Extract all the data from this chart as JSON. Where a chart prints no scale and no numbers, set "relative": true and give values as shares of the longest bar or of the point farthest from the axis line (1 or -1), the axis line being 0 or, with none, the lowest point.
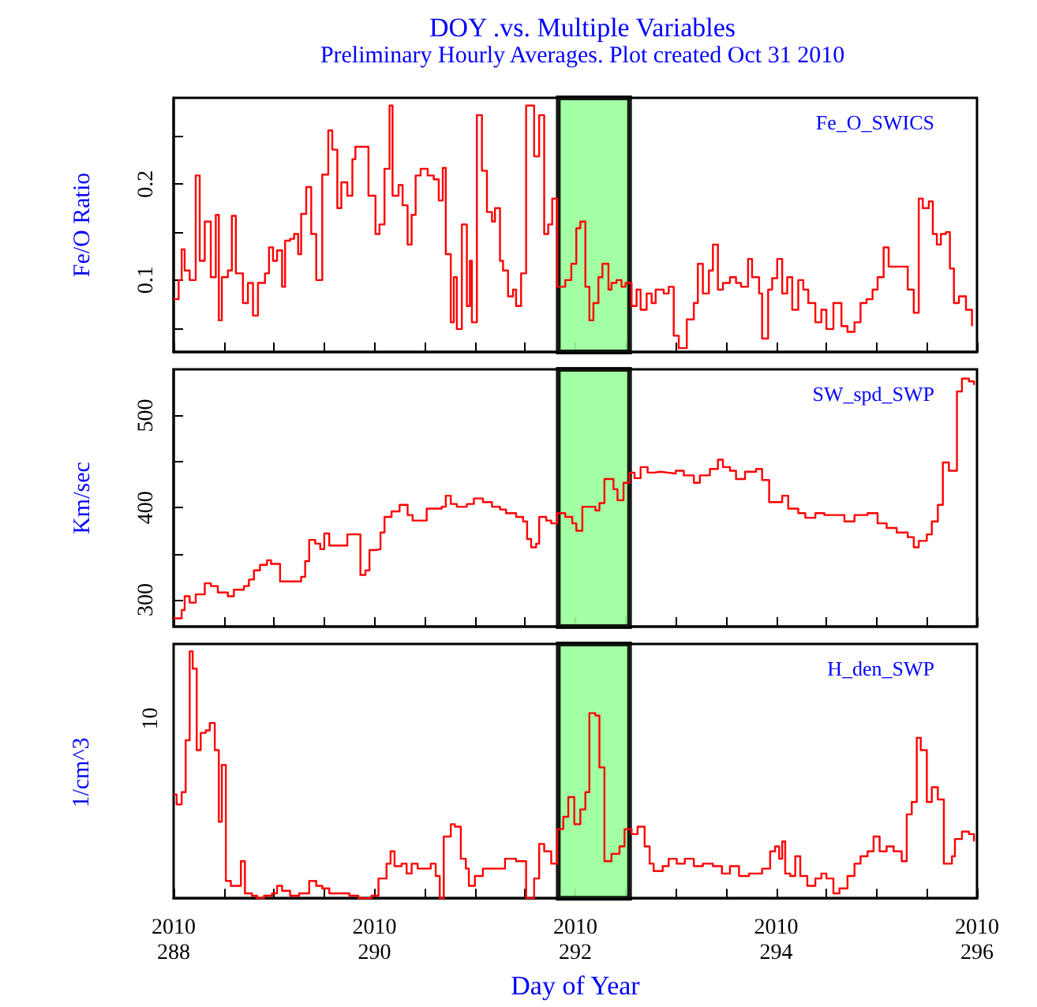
{
  "chart_data": [
    {
      "type": "step",
      "title": "DOY .vs. Multiple Variables",
      "subtitle": "Preliminary Hourly Averages. Plot created Oct 31 2010",
      "ylabel": "Fe/O Ratio",
      "legend": "top right",
      "tick_labels": "y",
      "xlim": [
        288,
        296
      ],
      "ylim": [
        0.025,
        0.29
      ],
      "xticks": [
        288,
        {
          "value": 288.5,
          "label": null
        },
        {
          "value": 289,
          "label": null
        },
        {
          "value": 289.5,
          "label": null
        },
        290,
        {
          "value": 290.5,
          "label": null
        },
        {
          "value": 291,
          "label": null
        },
        {
          "value": 291.5,
          "label": null
        },
        292,
        {
          "value": 292.5,
          "label": null
        },
        {
          "value": 293,
          "label": null
        },
        {
          "value": 293.5,
          "label": null
        },
        294,
        {
          "value": 294.5,
          "label": null
        },
        {
          "value": 295,
          "label": null
        },
        {
          "value": 295.5,
          "label": null
        },
        296
      ],
      "yticks": [
        {
          "value": 0.05,
          "label": null
        },
        0.1,
        {
          "value": 0.15,
          "label": null
        },
        0.2,
        {
          "value": 0.25,
          "label": null
        }
      ],
      "bands": [
        {
          "axis": "x",
          "from": 291.83,
          "to": 292.54,
          "color": "#99ff99"
        }
      ],
      "series": [
        {
          "name": "Fe_O_SWICS",
          "color": "#ff0000",
          "x": [
            288,
            288.05,
            288.08,
            288.11,
            288.16,
            288.22,
            288.26,
            288.31,
            288.37,
            288.42,
            288.45,
            288.48,
            288.54,
            288.58,
            288.62,
            288.69,
            288.74,
            288.79,
            288.84,
            288.91,
            288.95,
            288.99,
            289.03,
            289.08,
            289.11,
            289.16,
            289.2,
            289.24,
            289.27,
            289.32,
            289.37,
            289.42,
            289.48,
            289.54,
            289.58,
            289.63,
            289.67,
            289.73,
            289.78,
            289.81,
            289.86,
            289.94,
            290.01,
            290.05,
            290.1,
            290.15,
            290.18,
            290.24,
            290.28,
            290.33,
            290.37,
            290.41,
            290.46,
            290.53,
            290.59,
            290.64,
            290.68,
            290.71,
            290.76,
            290.79,
            290.82,
            290.87,
            290.92,
            290.95,
            290.97,
            291.02,
            291.07,
            291.12,
            291.17,
            291.2,
            291.25,
            291.28,
            291.33,
            291.38,
            291.41,
            291.46,
            291.51,
            291.59,
            291.64,
            291.69,
            291.73,
            291.77,
            291.82,
            291.9,
            291.96,
            292.01,
            292.05,
            292.1,
            292.14,
            292.18,
            292.23,
            292.27,
            292.33,
            292.36,
            292.41,
            292.46,
            292.5,
            292.56,
            292.61,
            292.65,
            292.71,
            292.76,
            292.8,
            292.88,
            292.93,
            292.98,
            293.03,
            293.11,
            293.18,
            293.22,
            293.27,
            293.33,
            293.37,
            293.42,
            293.47,
            293.54,
            293.6,
            293.65,
            293.72,
            293.76,
            293.83,
            293.86,
            293.92,
            293.96,
            294.01,
            294.06,
            294.11,
            294.16,
            294.22,
            294.27,
            294.32,
            294.39,
            294.45,
            294.5,
            294.57,
            294.65,
            294.71,
            294.78,
            294.84,
            294.9,
            294.96,
            295.01,
            295.07,
            295.12,
            295.2,
            295.31,
            295.37,
            295.42,
            295.46,
            295.52,
            295.56,
            295.6,
            295.64,
            295.69,
            295.73,
            295.77,
            295.82,
            295.89,
            295.95
          ],
          "values": [
            0.08,
            0.1,
            0.132,
            0.11,
            0.1,
            0.209,
            0.12,
            0.161,
            0.103,
            0.168,
            0.058,
            0.103,
            0.11,
            0.167,
            0.107,
            0.076,
            0.097,
            0.063,
            0.097,
            0.107,
            0.134,
            0.12,
            0.131,
            0.093,
            0.141,
            0.143,
            0.148,
            0.127,
            0.169,
            0.197,
            0.148,
            0.1,
            0.21,
            0.256,
            0.236,
            0.175,
            0.202,
            0.188,
            0.226,
            0.239,
            0.239,
            0.188,
            0.148,
            0.158,
            0.216,
            0.282,
            0.188,
            0.199,
            0.178,
            0.137,
            0.168,
            0.209,
            0.216,
            0.209,
            0.205,
            0.183,
            0.217,
            0.127,
            0.056,
            0.103,
            0.049,
            0.158,
            0.073,
            0.12,
            0.056,
            0.272,
            0.214,
            0.171,
            0.161,
            0.175,
            0.12,
            0.11,
            0.083,
            0.09,
            0.073,
            0.107,
            0.282,
            0.229,
            0.272,
            0.148,
            0.158,
            0.185,
            0.093,
            0.1,
            0.117,
            0.154,
            0.161,
            0.093,
            0.058,
            0.076,
            0.103,
            0.117,
            0.09,
            0.097,
            0.1,
            0.093,
            0.097,
            0.073,
            0.09,
            0.069,
            0.086,
            0.076,
            0.09,
            0.086,
            0.093,
            0.042,
            0.029,
            0.059,
            0.076,
            0.117,
            0.086,
            0.11,
            0.137,
            0.09,
            0.097,
            0.103,
            0.097,
            0.093,
            0.122,
            0.103,
            0.086,
            0.039,
            0.09,
            0.102,
            0.122,
            0.086,
            0.103,
            0.069,
            0.1,
            0.09,
            0.076,
            0.056,
            0.069,
            0.049,
            0.076,
            0.052,
            0.046,
            0.056,
            0.076,
            0.08,
            0.09,
            0.103,
            0.134,
            0.114,
            0.114,
            0.09,
            0.066,
            0.185,
            0.175,
            0.182,
            0.148,
            0.137,
            0.148,
            0.15,
            0.112,
            0.076,
            0.083,
            0.069,
            0.052
          ]
        }
      ]
    },
    {
      "type": "step",
      "ylabel": "Km/sec",
      "legend": "top right",
      "tick_labels": "y",
      "xlim": [
        288,
        296
      ],
      "ylim": [
        271,
        550
      ],
      "xticks": [
        288,
        {
          "value": 288.5,
          "label": null
        },
        {
          "value": 289,
          "label": null
        },
        {
          "value": 289.5,
          "label": null
        },
        290,
        {
          "value": 290.5,
          "label": null
        },
        {
          "value": 291,
          "label": null
        },
        {
          "value": 291.5,
          "label": null
        },
        292,
        {
          "value": 292.5,
          "label": null
        },
        {
          "value": 293,
          "label": null
        },
        {
          "value": 293.5,
          "label": null
        },
        294,
        {
          "value": 294.5,
          "label": null
        },
        {
          "value": 295,
          "label": null
        },
        {
          "value": 295.5,
          "label": null
        },
        296
      ],
      "yticks": [
        300,
        {
          "value": 350,
          "label": null
        },
        400,
        {
          "value": 450,
          "label": null
        },
        500
      ],
      "bands": [
        {
          "axis": "x",
          "from": 291.83,
          "to": 292.54,
          "color": "#99ff99"
        }
      ],
      "series": [
        {
          "name": "SW_spd_SWP",
          "color": "#ff0000",
          "x": [
            288,
            288.08,
            288.11,
            288.16,
            288.22,
            288.31,
            288.37,
            288.44,
            288.54,
            288.6,
            288.7,
            288.75,
            288.8,
            288.86,
            288.93,
            288.97,
            289.06,
            289.16,
            289.27,
            289.31,
            289.35,
            289.41,
            289.46,
            289.5,
            289.55,
            289.65,
            289.73,
            289.82,
            289.86,
            289.91,
            289.95,
            290.01,
            290.06,
            290.1,
            290.17,
            290.25,
            290.33,
            290.38,
            290.46,
            290.52,
            290.59,
            290.67,
            290.71,
            290.76,
            290.82,
            290.92,
            290.99,
            291.08,
            291.17,
            291.25,
            291.31,
            291.41,
            291.48,
            291.52,
            291.56,
            291.61,
            291.64,
            291.71,
            291.76,
            291.82,
            291.9,
            291.97,
            292.01,
            292.07,
            292.12,
            292.2,
            292.24,
            292.29,
            292.35,
            292.38,
            292.42,
            292.48,
            292.54,
            292.59,
            292.65,
            292.72,
            292.78,
            292.85,
            292.92,
            293,
            293.08,
            293.18,
            293.24,
            293.34,
            293.42,
            293.47,
            293.54,
            293.6,
            293.69,
            293.8,
            293.86,
            293.93,
            293.99,
            294.06,
            294.12,
            294.22,
            294.29,
            294.39,
            294.48,
            294.58,
            294.68,
            294.78,
            294.91,
            295.01,
            295.1,
            295.2,
            295.31,
            295.37,
            295.42,
            295.5,
            295.55,
            295.61,
            295.66,
            295.72,
            295.8,
            295.85,
            295.92,
            295.97
          ],
          "values": [
            280,
            289,
            304,
            297,
            306,
            318,
            315,
            308,
            304,
            311,
            315,
            322,
            332,
            338,
            343,
            339,
            320,
            320,
            325,
            342,
            365,
            361,
            355,
            372,
            359,
            359,
            371,
            371,
            327,
            332,
            354,
            355,
            373,
            390,
            396,
            403,
            392,
            386,
            386,
            399,
            399,
            401,
            413,
            404,
            401,
            404,
            410,
            406,
            401,
            398,
            394,
            390,
            385,
            366,
            357,
            361,
            390,
            386,
            383,
            394,
            390,
            383,
            375,
            401,
            401,
            397,
            405,
            431,
            431,
            420,
            408,
            427,
            438,
            432,
            444,
            438,
            439,
            438,
            437,
            440,
            435,
            427,
            435,
            442,
            452,
            444,
            440,
            431,
            439,
            442,
            430,
            406,
            406,
            413,
            399,
            394,
            389,
            394,
            392,
            392,
            385,
            392,
            394,
            383,
            378,
            373,
            368,
            357,
            364,
            371,
            385,
            403,
            449,
            440,
            526,
            540,
            537,
            533
          ]
        }
      ]
    },
    {
      "type": "step",
      "ylabel": "1/cm^3",
      "xlabel": "Day of Year",
      "legend": "top right",
      "relative": true,
      "annotations": [
        "2010",
        "2010",
        "2010",
        "2010",
        "2010",
        "10"
      ],
      "xlim": [
        288,
        296
      ],
      "xticks": [
        288,
        {
          "value": 288.5,
          "label": null
        },
        {
          "value": 289,
          "label": null
        },
        {
          "value": 289.5,
          "label": null
        },
        290,
        {
          "value": 290.5,
          "label": null
        },
        {
          "value": 291,
          "label": null
        },
        {
          "value": 291.5,
          "label": null
        },
        292,
        {
          "value": 292.5,
          "label": null
        },
        {
          "value": 293,
          "label": null
        },
        {
          "value": 293.5,
          "label": null
        },
        294,
        {
          "value": 294.5,
          "label": null
        },
        {
          "value": 295,
          "label": null
        },
        {
          "value": 295.5,
          "label": null
        },
        296
      ],
      "bands": [
        {
          "axis": "x",
          "from": 291.83,
          "to": 292.54,
          "color": "#99ff99"
        }
      ],
      "series": [
        {
          "name": "H_den_SWP",
          "color": "#ff0000",
          "x": [
            288,
            288.03,
            288.08,
            288.12,
            288.16,
            288.19,
            288.23,
            288.27,
            288.32,
            288.36,
            288.41,
            288.45,
            288.48,
            288.52,
            288.57,
            288.62,
            288.67,
            288.71,
            288.78,
            288.83,
            288.9,
            288.98,
            289.03,
            289.08,
            289.16,
            289.25,
            289.35,
            289.42,
            289.48,
            289.55,
            289.65,
            289.75,
            289.84,
            289.97,
            290.04,
            290.12,
            290.16,
            290.2,
            290.27,
            290.32,
            290.37,
            290.43,
            290.51,
            290.56,
            290.61,
            290.65,
            290.69,
            290.76,
            290.8,
            290.86,
            290.91,
            290.94,
            291,
            291.08,
            291.18,
            291.3,
            291.41,
            291.51,
            291.59,
            291.64,
            291.69,
            291.76,
            291.82,
            291.88,
            291.93,
            291.99,
            292.05,
            292.1,
            292.14,
            292.2,
            292.24,
            292.29,
            292.36,
            292.44,
            292.49,
            292.56,
            292.62,
            292.69,
            292.74,
            292.78,
            292.87,
            292.93,
            293.01,
            293.09,
            293.18,
            293.27,
            293.37,
            293.46,
            293.54,
            293.63,
            293.73,
            293.86,
            293.94,
            293.99,
            294.03,
            294.06,
            294.09,
            294.14,
            294.19,
            294.24,
            294.31,
            294.39,
            294.45,
            294.5,
            294.57,
            294.63,
            294.71,
            294.78,
            294.84,
            294.91,
            294.97,
            295.03,
            295.1,
            295.17,
            295.25,
            295.3,
            295.35,
            295.4,
            295.44,
            295.5,
            295.55,
            295.61,
            295.67,
            295.75,
            295.78,
            295.85,
            295.92,
            295.97
          ],
          "values": [
            0.42,
            0.38,
            0.43,
            0.64,
            1,
            0.93,
            0.6,
            0.67,
            0.68,
            0.71,
            0.6,
            0.31,
            0.54,
            0.07,
            0.05,
            0.05,
            0.15,
            0.02,
            0.01,
            0,
            0.01,
            0.02,
            0.05,
            0.03,
            0.01,
            0.02,
            0.07,
            0.05,
            0.04,
            0.02,
            0.02,
            0.01,
            0,
            0.01,
            0.08,
            0.14,
            0.19,
            0.13,
            0.14,
            0.1,
            0.14,
            0.12,
            0.12,
            0.14,
            0.09,
            0,
            0.25,
            0.3,
            0.29,
            0.16,
            0.12,
            0.05,
            0.09,
            0.12,
            0.12,
            0.16,
            0.15,
            0,
            0.08,
            0.22,
            0.19,
            0.14,
            0.28,
            0.33,
            0.41,
            0.3,
            0.36,
            0.43,
            0.75,
            0.74,
            0.53,
            0.15,
            0.18,
            0.21,
            0.28,
            0.26,
            0.29,
            0.21,
            0.14,
            0.11,
            0.13,
            0.16,
            0.14,
            0.16,
            0.13,
            0.14,
            0.13,
            0.1,
            0.13,
            0.09,
            0.1,
            0.12,
            0.19,
            0.21,
            0.16,
            0.23,
            0.1,
            0.09,
            0.17,
            0.09,
            0.05,
            0.08,
            0.1,
            0.08,
            0.02,
            0.04,
            0.09,
            0.14,
            0.17,
            0.19,
            0.25,
            0.19,
            0.21,
            0.19,
            0.15,
            0.34,
            0.39,
            0.65,
            0.6,
            0.39,
            0.45,
            0.4,
            0.14,
            0.17,
            0.24,
            0.27,
            0.26,
            0.23
          ]
        }
      ]
    }
  ]
}
